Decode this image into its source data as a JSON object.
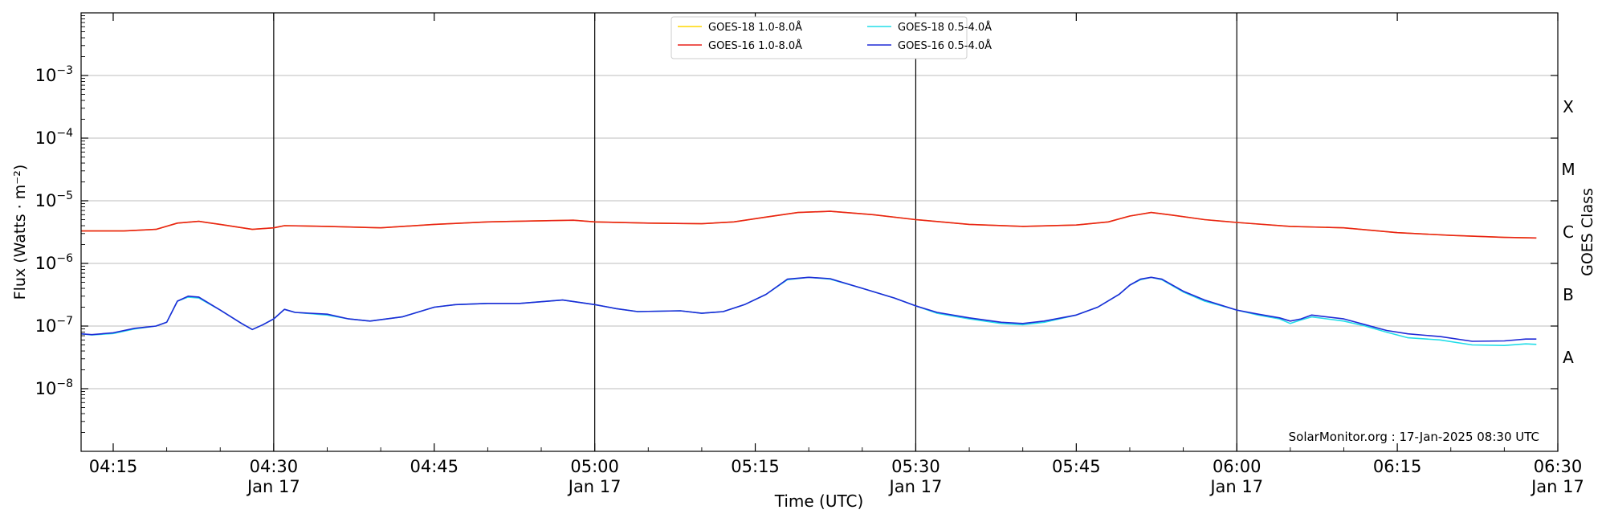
{
  "chart_data": {
    "type": "line",
    "title": "",
    "xlabel": "Time (UTC)",
    "ylabel": "Flux (Watts · m⁻²)",
    "right_label": "GOES Class",
    "yscale": "log",
    "ylim": [
      1e-09,
      0.01
    ],
    "xlim": [
      "04:12",
      "06:30"
    ],
    "y_ticks": [
      {
        "value": 1e-08,
        "base": "10",
        "exp": "−8"
      },
      {
        "value": 1e-07,
        "base": "10",
        "exp": "−7"
      },
      {
        "value": 1e-06,
        "base": "10",
        "exp": "−6"
      },
      {
        "value": 1e-05,
        "base": "10",
        "exp": "−5"
      },
      {
        "value": 0.0001,
        "base": "10",
        "exp": "−4"
      },
      {
        "value": 0.001,
        "base": "10",
        "exp": "−3"
      }
    ],
    "x_ticks": [
      {
        "time": "04:15",
        "label": "04:15",
        "date": ""
      },
      {
        "time": "04:30",
        "label": "04:30",
        "date": "Jan 17"
      },
      {
        "time": "04:45",
        "label": "04:45",
        "date": ""
      },
      {
        "time": "05:00",
        "label": "05:00",
        "date": "Jan 17"
      },
      {
        "time": "05:15",
        "label": "05:15",
        "date": ""
      },
      {
        "time": "05:30",
        "label": "05:30",
        "date": "Jan 17"
      },
      {
        "time": "05:45",
        "label": "05:45",
        "date": ""
      },
      {
        "time": "06:00",
        "label": "06:00",
        "date": "Jan 17"
      },
      {
        "time": "06:15",
        "label": "06:15",
        "date": ""
      },
      {
        "time": "06:30",
        "label": "06:30",
        "date": "Jan 17"
      }
    ],
    "vlines": [
      "04:30",
      "05:00",
      "05:30",
      "06:00"
    ],
    "grid": "horizontal at decades",
    "goes_classes": [
      {
        "label": "A",
        "value": 3.16e-08
      },
      {
        "label": "B",
        "value": 3.16e-07
      },
      {
        "label": "C",
        "value": 3.16e-06
      },
      {
        "label": "M",
        "value": 3.16e-05
      },
      {
        "label": "X",
        "value": 0.000316
      }
    ],
    "legend_position": "top-center",
    "series": [
      {
        "name": "GOES-18 1.0-8.0Å",
        "color": "#ffd700",
        "points": [
          [
            "04:12",
            3.3e-06
          ],
          [
            "04:16",
            3.3e-06
          ],
          [
            "04:19",
            3.5e-06
          ],
          [
            "04:21",
            4.4e-06
          ],
          [
            "04:23",
            4.7e-06
          ],
          [
            "04:25",
            4.2e-06
          ],
          [
            "04:28",
            3.5e-06
          ],
          [
            "04:30",
            3.7e-06
          ],
          [
            "04:31",
            4e-06
          ],
          [
            "04:35",
            3.9e-06
          ],
          [
            "04:40",
            3.7e-06
          ],
          [
            "04:45",
            4.2e-06
          ],
          [
            "04:50",
            4.6e-06
          ],
          [
            "04:55",
            4.8e-06
          ],
          [
            "04:58",
            4.9e-06
          ],
          [
            "05:00",
            4.6e-06
          ],
          [
            "05:05",
            4.4e-06
          ],
          [
            "05:10",
            4.3e-06
          ],
          [
            "05:13",
            4.6e-06
          ],
          [
            "05:16",
            5.5e-06
          ],
          [
            "05:19",
            6.5e-06
          ],
          [
            "05:22",
            6.8e-06
          ],
          [
            "05:26",
            6e-06
          ],
          [
            "05:30",
            5e-06
          ],
          [
            "05:35",
            4.2e-06
          ],
          [
            "05:40",
            3.9e-06
          ],
          [
            "05:45",
            4.1e-06
          ],
          [
            "05:48",
            4.6e-06
          ],
          [
            "05:50",
            5.7e-06
          ],
          [
            "05:52",
            6.5e-06
          ],
          [
            "05:54",
            5.9e-06
          ],
          [
            "05:57",
            5e-06
          ],
          [
            "06:00",
            4.5e-06
          ],
          [
            "06:05",
            3.9e-06
          ],
          [
            "06:10",
            3.7e-06
          ],
          [
            "06:15",
            3.1e-06
          ],
          [
            "06:20",
            2.8e-06
          ],
          [
            "06:25",
            2.6e-06
          ],
          [
            "06:28",
            2.55e-06
          ]
        ]
      },
      {
        "name": "GOES-16 1.0-8.0Å",
        "color": "#e8211a",
        "points": [
          [
            "04:12",
            3.3e-06
          ],
          [
            "04:16",
            3.3e-06
          ],
          [
            "04:19",
            3.5e-06
          ],
          [
            "04:21",
            4.4e-06
          ],
          [
            "04:23",
            4.7e-06
          ],
          [
            "04:25",
            4.2e-06
          ],
          [
            "04:28",
            3.5e-06
          ],
          [
            "04:30",
            3.7e-06
          ],
          [
            "04:31",
            4e-06
          ],
          [
            "04:35",
            3.9e-06
          ],
          [
            "04:40",
            3.7e-06
          ],
          [
            "04:45",
            4.2e-06
          ],
          [
            "04:50",
            4.6e-06
          ],
          [
            "04:55",
            4.8e-06
          ],
          [
            "04:58",
            4.9e-06
          ],
          [
            "05:00",
            4.6e-06
          ],
          [
            "05:05",
            4.4e-06
          ],
          [
            "05:10",
            4.3e-06
          ],
          [
            "05:13",
            4.6e-06
          ],
          [
            "05:16",
            5.5e-06
          ],
          [
            "05:19",
            6.5e-06
          ],
          [
            "05:22",
            6.8e-06
          ],
          [
            "05:26",
            6e-06
          ],
          [
            "05:30",
            5e-06
          ],
          [
            "05:35",
            4.2e-06
          ],
          [
            "05:40",
            3.9e-06
          ],
          [
            "05:45",
            4.1e-06
          ],
          [
            "05:48",
            4.6e-06
          ],
          [
            "05:50",
            5.7e-06
          ],
          [
            "05:52",
            6.5e-06
          ],
          [
            "05:54",
            5.9e-06
          ],
          [
            "05:57",
            5e-06
          ],
          [
            "06:00",
            4.5e-06
          ],
          [
            "06:05",
            3.9e-06
          ],
          [
            "06:10",
            3.7e-06
          ],
          [
            "06:15",
            3.1e-06
          ],
          [
            "06:20",
            2.8e-06
          ],
          [
            "06:25",
            2.6e-06
          ],
          [
            "06:28",
            2.55e-06
          ]
        ]
      },
      {
        "name": "GOES-18 0.5-4.0Å",
        "color": "#22dde8",
        "points": [
          [
            "04:12",
            7.5e-08
          ],
          [
            "04:13",
            7.2e-08
          ],
          [
            "04:15",
            7.6e-08
          ],
          [
            "04:17",
            9e-08
          ],
          [
            "04:19",
            1e-07
          ],
          [
            "04:20",
            1.15e-07
          ],
          [
            "04:21",
            2.5e-07
          ],
          [
            "04:22",
            2.9e-07
          ],
          [
            "04:23",
            2.8e-07
          ],
          [
            "04:25",
            1.8e-07
          ],
          [
            "04:27",
            1.1e-07
          ],
          [
            "04:28",
            8.8e-08
          ],
          [
            "04:29",
            1.05e-07
          ],
          [
            "04:30",
            1.3e-07
          ],
          [
            "04:31",
            1.85e-07
          ],
          [
            "04:32",
            1.65e-07
          ],
          [
            "04:35",
            1.5e-07
          ],
          [
            "04:37",
            1.3e-07
          ],
          [
            "04:39",
            1.2e-07
          ],
          [
            "04:42",
            1.4e-07
          ],
          [
            "04:45",
            2e-07
          ],
          [
            "04:47",
            2.2e-07
          ],
          [
            "04:50",
            2.3e-07
          ],
          [
            "04:53",
            2.3e-07
          ],
          [
            "04:57",
            2.6e-07
          ],
          [
            "05:00",
            2.2e-07
          ],
          [
            "05:02",
            1.9e-07
          ],
          [
            "05:04",
            1.7e-07
          ],
          [
            "05:08",
            1.75e-07
          ],
          [
            "05:10",
            1.6e-07
          ],
          [
            "05:12",
            1.7e-07
          ],
          [
            "05:14",
            2.2e-07
          ],
          [
            "05:16",
            3.2e-07
          ],
          [
            "05:18",
            5.5e-07
          ],
          [
            "05:20",
            6e-07
          ],
          [
            "05:22",
            5.6e-07
          ],
          [
            "05:25",
            4e-07
          ],
          [
            "05:28",
            2.8e-07
          ],
          [
            "05:30",
            2.1e-07
          ],
          [
            "05:32",
            1.6e-07
          ],
          [
            "05:35",
            1.3e-07
          ],
          [
            "05:38",
            1.1e-07
          ],
          [
            "05:40",
            1.05e-07
          ],
          [
            "05:42",
            1.15e-07
          ],
          [
            "05:45",
            1.5e-07
          ],
          [
            "05:47",
            2e-07
          ],
          [
            "05:49",
            3.2e-07
          ],
          [
            "05:50",
            4.5e-07
          ],
          [
            "05:51",
            5.5e-07
          ],
          [
            "05:52",
            6e-07
          ],
          [
            "05:53",
            5.5e-07
          ],
          [
            "05:55",
            3.5e-07
          ],
          [
            "05:57",
            2.5e-07
          ],
          [
            "06:00",
            1.8e-07
          ],
          [
            "06:02",
            1.5e-07
          ],
          [
            "06:04",
            1.3e-07
          ],
          [
            "06:05",
            1.1e-07
          ],
          [
            "06:06",
            1.25e-07
          ],
          [
            "06:07",
            1.4e-07
          ],
          [
            "06:10",
            1.2e-07
          ],
          [
            "06:12",
            1e-07
          ],
          [
            "06:14",
            8e-08
          ],
          [
            "06:16",
            6.5e-08
          ],
          [
            "06:19",
            6e-08
          ],
          [
            "06:22",
            5e-08
          ],
          [
            "06:25",
            4.9e-08
          ],
          [
            "06:27",
            5.2e-08
          ],
          [
            "06:28",
            5.1e-08
          ]
        ]
      },
      {
        "name": "GOES-16 0.5-4.0Å",
        "color": "#1f2ad6",
        "points": [
          [
            "04:12",
            7.5e-08
          ],
          [
            "04:13",
            7.3e-08
          ],
          [
            "04:15",
            7.8e-08
          ],
          [
            "04:17",
            9.2e-08
          ],
          [
            "04:19",
            1e-07
          ],
          [
            "04:20",
            1.15e-07
          ],
          [
            "04:21",
            2.5e-07
          ],
          [
            "04:22",
            3e-07
          ],
          [
            "04:23",
            2.9e-07
          ],
          [
            "04:25",
            1.8e-07
          ],
          [
            "04:27",
            1.1e-07
          ],
          [
            "04:28",
            8.8e-08
          ],
          [
            "04:29",
            1.05e-07
          ],
          [
            "04:30",
            1.3e-07
          ],
          [
            "04:31",
            1.85e-07
          ],
          [
            "04:32",
            1.65e-07
          ],
          [
            "04:35",
            1.55e-07
          ],
          [
            "04:37",
            1.3e-07
          ],
          [
            "04:39",
            1.2e-07
          ],
          [
            "04:42",
            1.4e-07
          ],
          [
            "04:45",
            2e-07
          ],
          [
            "04:47",
            2.2e-07
          ],
          [
            "04:50",
            2.3e-07
          ],
          [
            "04:53",
            2.3e-07
          ],
          [
            "04:57",
            2.6e-07
          ],
          [
            "05:00",
            2.2e-07
          ],
          [
            "05:02",
            1.9e-07
          ],
          [
            "05:04",
            1.7e-07
          ],
          [
            "05:08",
            1.75e-07
          ],
          [
            "05:10",
            1.6e-07
          ],
          [
            "05:12",
            1.7e-07
          ],
          [
            "05:14",
            2.2e-07
          ],
          [
            "05:16",
            3.2e-07
          ],
          [
            "05:18",
            5.6e-07
          ],
          [
            "05:20",
            6e-07
          ],
          [
            "05:22",
            5.7e-07
          ],
          [
            "05:25",
            4e-07
          ],
          [
            "05:28",
            2.8e-07
          ],
          [
            "05:30",
            2.1e-07
          ],
          [
            "05:32",
            1.65e-07
          ],
          [
            "05:35",
            1.35e-07
          ],
          [
            "05:38",
            1.15e-07
          ],
          [
            "05:40",
            1.1e-07
          ],
          [
            "05:42",
            1.2e-07
          ],
          [
            "05:45",
            1.5e-07
          ],
          [
            "05:47",
            2e-07
          ],
          [
            "05:49",
            3.2e-07
          ],
          [
            "05:50",
            4.5e-07
          ],
          [
            "05:51",
            5.6e-07
          ],
          [
            "05:52",
            6e-07
          ],
          [
            "05:53",
            5.6e-07
          ],
          [
            "05:55",
            3.6e-07
          ],
          [
            "05:57",
            2.6e-07
          ],
          [
            "06:00",
            1.8e-07
          ],
          [
            "06:02",
            1.55e-07
          ],
          [
            "06:04",
            1.35e-07
          ],
          [
            "06:05",
            1.2e-07
          ],
          [
            "06:06",
            1.3e-07
          ],
          [
            "06:07",
            1.5e-07
          ],
          [
            "06:10",
            1.3e-07
          ],
          [
            "06:12",
            1.05e-07
          ],
          [
            "06:14",
            8.5e-08
          ],
          [
            "06:16",
            7.5e-08
          ],
          [
            "06:19",
            6.8e-08
          ],
          [
            "06:22",
            5.7e-08
          ],
          [
            "06:25",
            5.8e-08
          ],
          [
            "06:27",
            6.2e-08
          ],
          [
            "06:28",
            6.2e-08
          ]
        ]
      }
    ],
    "annotation": "SolarMonitor.org : 17-Jan-2025 08:30 UTC"
  }
}
